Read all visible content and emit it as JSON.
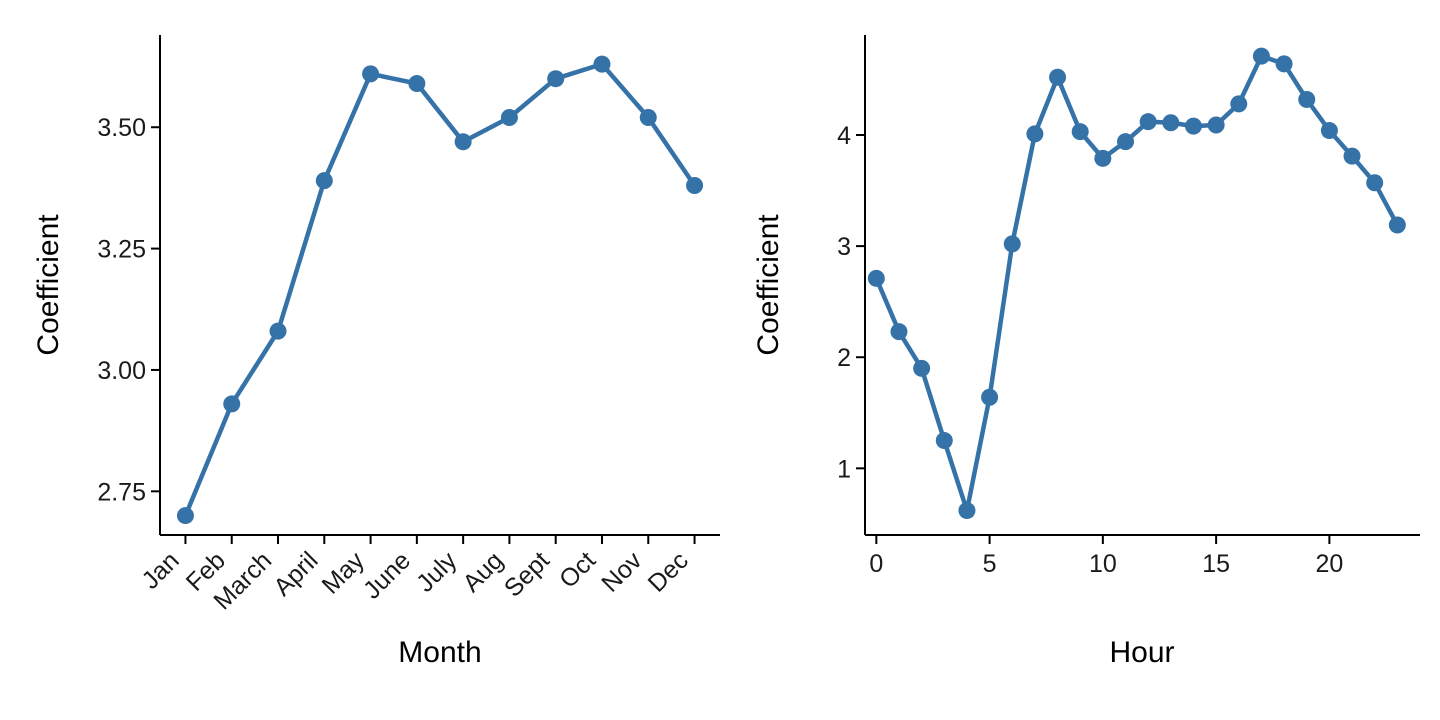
{
  "figure": {
    "background": "#ffffff",
    "accent_color": "#3572a8"
  },
  "chart_data": [
    {
      "type": "line",
      "title": "",
      "xlabel": "Month",
      "ylabel": "Coefficient",
      "categories": [
        "Jan",
        "Feb",
        "March",
        "April",
        "May",
        "June",
        "July",
        "Aug",
        "Sept",
        "Oct",
        "Nov",
        "Dec"
      ],
      "values": [
        2.7,
        2.93,
        3.08,
        3.39,
        3.61,
        3.59,
        3.47,
        3.52,
        3.6,
        3.63,
        3.52,
        3.38
      ],
      "yticks": [
        2.75,
        3.0,
        3.25,
        3.5
      ],
      "ytick_labels": [
        "2.75",
        "3.00",
        "3.25",
        "3.50"
      ],
      "ylim": [
        2.66,
        3.69
      ],
      "xlim": [
        -0.55,
        11.55
      ],
      "rotate_x_labels": true,
      "grid": false,
      "legend": "none",
      "color": "#3572a8"
    },
    {
      "type": "line",
      "title": "",
      "xlabel": "Hour",
      "ylabel": "Coefficient",
      "x": [
        0,
        1,
        2,
        3,
        4,
        5,
        6,
        7,
        8,
        9,
        10,
        11,
        12,
        13,
        14,
        15,
        16,
        17,
        18,
        19,
        20,
        21,
        22,
        23
      ],
      "values": [
        2.71,
        2.23,
        1.9,
        1.25,
        0.62,
        1.64,
        3.02,
        4.01,
        4.52,
        4.03,
        3.79,
        3.94,
        4.12,
        4.11,
        4.08,
        4.09,
        4.28,
        4.71,
        4.64,
        4.32,
        4.04,
        3.81,
        3.57,
        3.19
      ],
      "xticks": [
        0,
        5,
        10,
        15,
        20
      ],
      "xtick_labels": [
        "0",
        "5",
        "10",
        "15",
        "20"
      ],
      "yticks": [
        1,
        2,
        3,
        4
      ],
      "ytick_labels": [
        "1",
        "2",
        "3",
        "4"
      ],
      "ylim": [
        0.4,
        4.9
      ],
      "xlim": [
        -0.5,
        24.0
      ],
      "rotate_x_labels": false,
      "grid": false,
      "legend": "none",
      "color": "#3572a8"
    }
  ]
}
